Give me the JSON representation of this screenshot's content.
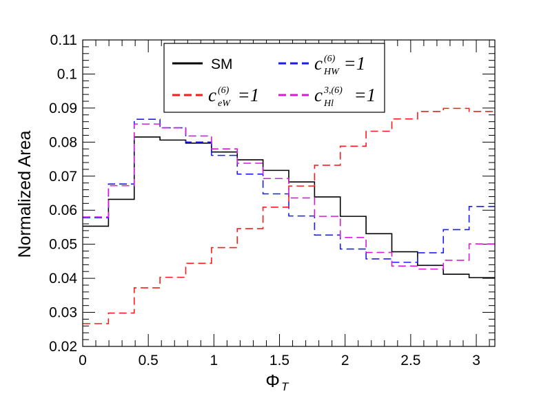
{
  "chart_data": {
    "type": "step-histogram",
    "title": "",
    "xlabel": "Φ",
    "xlabel_sub": "T",
    "ylabel": "Normalized Area",
    "xlim": [
      0,
      3.1416
    ],
    "ylim": [
      0.02,
      0.11
    ],
    "xticks": [
      0,
      0.5,
      1,
      1.5,
      2,
      2.5,
      3
    ],
    "xtick_labels": [
      "0",
      "0.5",
      "1",
      "1.5",
      "2",
      "2.5",
      "3"
    ],
    "yticks": [
      0.02,
      0.03,
      0.04,
      0.05,
      0.06,
      0.07,
      0.08,
      0.09,
      0.1,
      0.11
    ],
    "ytick_labels": [
      "0.02",
      "0.03",
      "0.04",
      "0.05",
      "0.06",
      "0.07",
      "0.08",
      "0.09",
      "0.1",
      "0.11"
    ],
    "bin_edges": [
      0,
      0.1963,
      0.3927,
      0.589,
      0.7854,
      0.9817,
      1.1781,
      1.3744,
      1.5708,
      1.7671,
      1.9635,
      2.1598,
      2.3562,
      2.5525,
      2.7489,
      2.9452,
      3.1416
    ],
    "series": [
      {
        "name": "SM",
        "color": "#000000",
        "style": "solid",
        "values": [
          0.0553,
          0.0632,
          0.0815,
          0.0806,
          0.0797,
          0.0771,
          0.0748,
          0.0717,
          0.0683,
          0.0639,
          0.0582,
          0.0531,
          0.0478,
          0.0438,
          0.0412,
          0.0402
        ]
      },
      {
        "name": "cHW",
        "color": "#1a1aff",
        "style": "dashed",
        "values": [
          0.0578,
          0.0677,
          0.0867,
          0.0842,
          0.08,
          0.0761,
          0.0706,
          0.0648,
          0.0583,
          0.0527,
          0.0486,
          0.0457,
          0.0447,
          0.0475,
          0.0543,
          0.0611
        ]
      },
      {
        "name": "ceW",
        "color": "#ff1a1a",
        "style": "dashed",
        "values": [
          0.0267,
          0.0298,
          0.0372,
          0.0403,
          0.0444,
          0.049,
          0.0546,
          0.0609,
          0.0671,
          0.0732,
          0.0788,
          0.0832,
          0.0868,
          0.089,
          0.0899,
          0.089
        ]
      },
      {
        "name": "cHl",
        "color": "#d61ad6",
        "style": "dashed",
        "values": [
          0.058,
          0.0672,
          0.0853,
          0.0842,
          0.0818,
          0.078,
          0.0738,
          0.0693,
          0.0636,
          0.0582,
          0.052,
          0.0476,
          0.0436,
          0.0427,
          0.0453,
          0.0501
        ]
      }
    ],
    "legend": [
      {
        "series": "SM",
        "text": "SM",
        "base": "",
        "sup": "",
        "sub": "",
        "suffix": ""
      },
      {
        "series": "cHW",
        "text": "",
        "base": "c",
        "sup": "(6)",
        "sub": "HW",
        "suffix": "=1"
      },
      {
        "series": "ceW",
        "text": "",
        "base": "c",
        "sup": "(6)",
        "sub": "eW",
        "suffix": "=1"
      },
      {
        "series": "cHl",
        "text": "",
        "base": "c",
        "sup": "3,(6)",
        "sub": "Hl",
        "suffix": "=1"
      }
    ],
    "legend_position": "top-center"
  }
}
